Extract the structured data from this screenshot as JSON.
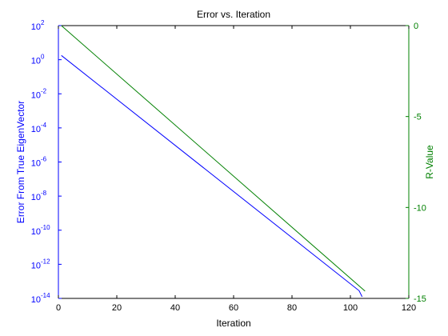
{
  "chart_data": {
    "type": "line",
    "title": "Error vs. Iteration",
    "xlabel": "Iteration",
    "ylabel_left": "Error From True EigenVector",
    "ylabel_right": "R-Value",
    "xlim": [
      0,
      120
    ],
    "x_ticks": [
      "0",
      "20",
      "40",
      "60",
      "80",
      "100",
      "120"
    ],
    "ylim_left_log10": [
      -14,
      2
    ],
    "y_left_ticks": [
      {
        "exp": 2,
        "base": "10",
        "sup": "2"
      },
      {
        "exp": 0,
        "base": "10",
        "sup": "0"
      },
      {
        "exp": -2,
        "base": "10",
        "sup": "-2"
      },
      {
        "exp": -4,
        "base": "10",
        "sup": "-4"
      },
      {
        "exp": -6,
        "base": "10",
        "sup": "-6"
      },
      {
        "exp": -8,
        "base": "10",
        "sup": "-8"
      },
      {
        "exp": -10,
        "base": "10",
        "sup": "-10"
      },
      {
        "exp": -12,
        "base": "10",
        "sup": "-12"
      },
      {
        "exp": -14,
        "base": "10",
        "sup": "-14"
      }
    ],
    "ylim_right": [
      -15,
      0
    ],
    "y_right_ticks": [
      "0",
      "-5",
      "-10",
      "-15"
    ],
    "series": [
      {
        "name": "Error",
        "axis": "left",
        "scale": "log10",
        "color": "#0000ff",
        "x": [
          1,
          103,
          104
        ],
        "y_log10": [
          0.25,
          -13.55,
          -13.9
        ]
      },
      {
        "name": "R-Value",
        "axis": "right",
        "color": "#008000",
        "x": [
          1,
          105
        ],
        "y": [
          0,
          -14.6
        ]
      }
    ],
    "axis_colors": {
      "left": "#0000ff",
      "right": "#008000",
      "x": "#000000"
    },
    "grid": false
  }
}
